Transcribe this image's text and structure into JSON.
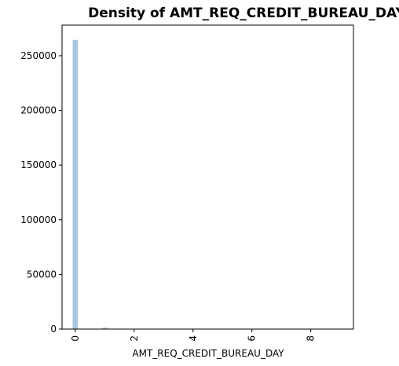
{
  "chart_data": {
    "type": "bar",
    "title": "Density of AMT_REQ_CREDIT_BUREAU_DAY",
    "xlabel": "AMT_REQ_CREDIT_BUREAU_DAY",
    "ylabel": "",
    "xlim": [
      -0.45,
      9.45
    ],
    "ylim": [
      0,
      278000
    ],
    "bar_color": "#a9c7dc",
    "bin_width": 0.18,
    "bins": [
      {
        "x": 0.0,
        "value": 264500
      },
      {
        "x": 1.0,
        "value": 1300
      },
      {
        "x": 2.0,
        "value": 100
      },
      {
        "x": 3.0,
        "value": 50
      },
      {
        "x": 4.0,
        "value": 30
      },
      {
        "x": 5.0,
        "value": 10
      },
      {
        "x": 6.0,
        "value": 10
      },
      {
        "x": 9.0,
        "value": 5
      }
    ],
    "x_ticks": [
      0,
      2,
      4,
      6,
      8
    ],
    "x_tick_labels": [
      "0",
      "2",
      "4",
      "6",
      "8"
    ],
    "x_tick_rotation": -90,
    "y_ticks": [
      0,
      50000,
      100000,
      150000,
      200000,
      250000
    ],
    "y_tick_labels": [
      "0",
      "50000",
      "100000",
      "150000",
      "200000",
      "250000"
    ],
    "grid": false
  }
}
